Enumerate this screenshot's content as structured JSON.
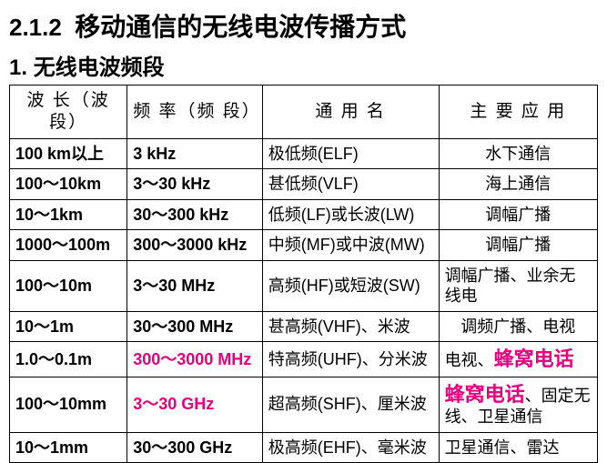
{
  "heading": {
    "section_number": "2.1.2",
    "section_title": "移动通信的无线电波传播方式",
    "subsection_number": "1.",
    "subsection_title": "无线电波频段"
  },
  "table": {
    "columns": [
      "波 长（波 段）",
      "频 率（频 段）",
      "通  用  名",
      "主 要 应 用"
    ],
    "rows": [
      {
        "wavelength": "100 km以上",
        "frequency": "3 kHz",
        "common_name": "极低频(ELF)",
        "application": "水下通信",
        "col4_align": "center"
      },
      {
        "wavelength": "100～10km",
        "frequency": "3～30 kHz",
        "common_name": "甚低频(VLF)",
        "application": "海上通信",
        "col4_align": "center"
      },
      {
        "wavelength": "10～1km",
        "frequency": "30～300 kHz",
        "common_name": "低频(LF)或长波(LW)",
        "application": "调幅广播",
        "col4_align": "center"
      },
      {
        "wavelength": "1000～100m",
        "frequency": "300～3000 kHz",
        "common_name": "中频(MF)或中波(MW)",
        "application": "调幅广播",
        "col4_align": "center"
      },
      {
        "wavelength": "100～10m",
        "frequency": "3～30 MHz",
        "common_name": "高频(HF)或短波(SW)",
        "application": "调幅广播、业余无线电",
        "col4_align": "left"
      },
      {
        "wavelength": "10～1m",
        "frequency": "30～300 MHz",
        "common_name": "甚高频(VHF)、米波",
        "application": "调频广播、电视",
        "col4_align": "center"
      },
      {
        "wavelength": "1.0～0.1m",
        "frequency": "300～3000 MHz",
        "frequency_highlight": true,
        "common_name": "特高频(UHF)、分米波",
        "application_parts": [
          {
            "text": "电视、",
            "style": "normal"
          },
          {
            "text": "蜂窝电话",
            "style": "big-magenta"
          }
        ],
        "col4_align": "left"
      },
      {
        "wavelength": "100～10mm",
        "frequency": "3～30 GHz",
        "frequency_highlight": true,
        "common_name": "超高频(SHF)、厘米波",
        "application_parts": [
          {
            "text": "蜂窝电话",
            "style": "big-magenta"
          },
          {
            "text": "、固定无线、卫星通信",
            "style": "normal"
          }
        ],
        "col4_align": "left"
      },
      {
        "wavelength": "10～1mm",
        "frequency": "30～300 GHz",
        "common_name": "极高频(EHF)、毫米波",
        "application": "卫星通信、雷达",
        "col4_align": "left"
      }
    ]
  }
}
